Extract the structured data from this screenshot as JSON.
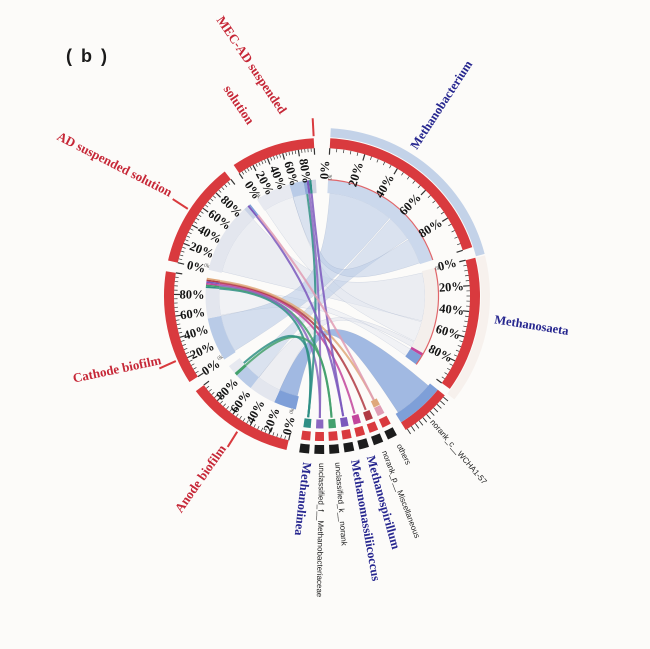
{
  "panel_label": "( b )",
  "colors": {
    "background": "#fcfbf9",
    "axis_red": "#d93a3e",
    "sample_label": "#c62737",
    "taxon_label": "#26268f",
    "tick_text": "#141414",
    "black_band": "#1c1c1c",
    "inner_edge_red": "#e0666a"
  },
  "axis": {
    "tick_labels": [
      "0%",
      "20%",
      "40%",
      "60%",
      "80%"
    ],
    "tick_pcts": [
      0,
      20,
      40,
      60,
      80
    ],
    "minor_step_pct": 4,
    "max_pct": 100,
    "unit_mark": "0k"
  },
  "chart_data": {
    "type": "circos-chord",
    "unit": "%",
    "groups": {
      "samples": [
        "MEC-AD suspended solution",
        "AD suspended solution",
        "Cathode biofilm",
        "Anode biofilm"
      ],
      "genera": [
        "Methanobacterium",
        "Methanosaeta",
        "norank_c__WCHA1-57",
        "others",
        "norank_p__Miscellaneous",
        "Methanospirillum",
        "Methanomassiliicoccus",
        "unclassified_k__norank",
        "unclassified_f__Methanobacteriaceae",
        "Methanolinea"
      ]
    },
    "composition_estimate_pct": {
      "MEC-AD suspended solution": {
        "Methanosaeta": 57,
        "Methanobacterium": 23,
        "minor_genera": 20
      },
      "AD suspended solution": {
        "Methanosaeta": 90,
        "minor_genera": 10
      },
      "Cathode biofilm": {
        "Methanobacterium": 52,
        "Methanosaeta": 36,
        "minor_genera": 12
      },
      "Anode biofilm": {
        "norank_c__WCHA1-57": 28,
        "Methanosaeta": 34,
        "Methanobacterium": 23,
        "minor_genera": 15
      }
    },
    "segments": [
      {
        "id": "mecad",
        "label": "MEC-AD suspended solution",
        "kind": "sample",
        "start": 326,
        "end": 357,
        "axis": true,
        "callout_deg": 357,
        "name_label": {
          "lines": [
            "MEC-AD suspended",
            "solution"
          ],
          "angles": [
            347,
            336.5
          ],
          "radius": 186,
          "rotate": 56,
          "anchor": "end"
        },
        "inner_bands": [
          [
            0,
            0.57,
            "#e7e9f0"
          ],
          [
            0.57,
            0.8,
            "#b9cbe7"
          ],
          [
            0.8,
            0.85,
            "#8ea8d8"
          ],
          [
            0.85,
            0.89,
            "#7b58bd"
          ],
          [
            0.89,
            0.93,
            "#2f8f85"
          ],
          [
            0.93,
            1,
            "#cfd3e2"
          ]
        ]
      },
      {
        "id": "ad",
        "label": "AD suspended solution",
        "kind": "sample",
        "start": 283,
        "end": 322,
        "axis": true,
        "callout_deg": 303,
        "name_label": {
          "lines": [
            "AD suspended solution"
          ],
          "angles": [
            303
          ],
          "radius": 182,
          "rotate": 27,
          "anchor": "end"
        },
        "inner_bands": [
          [
            0,
            0.9,
            "#e3e6ee"
          ],
          [
            0.9,
            0.955,
            "#c9d2e6"
          ],
          [
            0.955,
            0.98,
            "#7b58bd"
          ],
          [
            0.98,
            1,
            "#7e9fd8"
          ]
        ]
      },
      {
        "id": "cathode",
        "label": "Cathode biofilm",
        "kind": "sample",
        "start": 237,
        "end": 279,
        "axis": true,
        "callout_deg": 246,
        "name_label": {
          "lines": [
            "Cathode biofilm"
          ],
          "angles": [
            247
          ],
          "radius": 174,
          "rotate": -12,
          "anchor": "end"
        },
        "inner_bands": [
          [
            0,
            0.52,
            "#b9cbe7"
          ],
          [
            0.52,
            0.88,
            "#e3e6ee"
          ],
          [
            0.88,
            0.9,
            "#2f8f85"
          ],
          [
            0.9,
            0.92,
            "#43a06c"
          ],
          [
            0.92,
            0.94,
            "#c2459c"
          ],
          [
            0.94,
            0.96,
            "#7b58bd"
          ],
          [
            0.96,
            0.98,
            "#b03a43"
          ],
          [
            0.98,
            1,
            "#dfa87a"
          ]
        ]
      },
      {
        "id": "anode",
        "label": "Anode biofilm",
        "kind": "sample",
        "start": 193,
        "end": 233,
        "axis": true,
        "callout_deg": 212,
        "name_label": {
          "lines": [
            "Anode biofilm"
          ],
          "angles": [
            212
          ],
          "radius": 180,
          "rotate": -55,
          "anchor": "end"
        },
        "inner_bands": [
          [
            0,
            0.28,
            "#7e9fd8"
          ],
          [
            0.28,
            0.62,
            "#e3e6ee"
          ],
          [
            0.62,
            0.85,
            "#b9cbe7"
          ],
          [
            0.85,
            0.89,
            "#43a06c"
          ],
          [
            0.89,
            1,
            "#e7e9f0"
          ]
        ]
      },
      {
        "id": "methanobacterium",
        "label": "Methanobacterium",
        "kind": "genus",
        "start": 3,
        "end": 72,
        "axis": true,
        "outer_band": "#c3d2e8",
        "outer_band_end": 75.5,
        "inner_edge": true,
        "name_label": {
          "lines": [
            "Methanobacterium"
          ],
          "angles": [
            33
          ],
          "radius": 174,
          "rotate": -57,
          "anchor": "start"
        },
        "inner_bands": [
          [
            0,
            1,
            "#cbd8ec"
          ]
        ]
      },
      {
        "id": "methanosaeta",
        "label": "Methanosaeta",
        "kind": "genus",
        "start": 76,
        "end": 126,
        "axis": true,
        "outer_band": "#f7f1ed",
        "outer_band_end": 128,
        "inner_edge": true,
        "name_label": {
          "lines": [
            "Methanosaeta"
          ],
          "angles": [
            99
          ],
          "radius": 174,
          "rotate": 9,
          "anchor": "start"
        },
        "inner_bands": [
          [
            0,
            0.87,
            "#f4efec"
          ],
          [
            0.87,
            0.9,
            "#c2459c"
          ],
          [
            0.9,
            1,
            "#7e9fd8"
          ]
        ]
      },
      {
        "id": "norank_c",
        "label": "norank_c__WCHA1-57",
        "kind": "genus",
        "start": 129,
        "end": 148,
        "axis": false,
        "dense_ticks": true,
        "band_color": "#7e9fd8",
        "name_label": {
          "lines": [
            "norank_c__WCHA1-57"
          ],
          "angles": [
            139.5
          ],
          "radius": 166,
          "rotate": 49.5,
          "anchor": "start",
          "small": true
        }
      },
      {
        "id": "others",
        "label": "others",
        "kind": "genus-small",
        "center": 153.5,
        "color": "#e09cb4",
        "color2": "#dfa87a",
        "name_label": {
          "lines": [
            "others"
          ],
          "angles": [
            153.5
          ],
          "radius": 167,
          "rotate": 63.5,
          "anchor": "start",
          "small": true
        }
      },
      {
        "id": "norank_p",
        "label": "norank_p__Miscellaneous",
        "kind": "genus-small",
        "center": 159,
        "color": "#b03a43",
        "name_label": {
          "lines": [
            "norank_p__Miscellaneous"
          ],
          "angles": [
            159
          ],
          "radius": 167,
          "rotate": 69,
          "anchor": "start",
          "small": true
        }
      },
      {
        "id": "methanospirillum",
        "label": "Methanospirillum",
        "kind": "genus-small",
        "center": 164.5,
        "color": "#c2459c",
        "big": true,
        "name_label": {
          "lines": [
            "Methanospirillum"
          ],
          "angles": [
            164.5
          ],
          "radius": 167,
          "rotate": 74.5,
          "anchor": "start"
        }
      },
      {
        "id": "methanomassiliicoccus",
        "label": "Methanomassiliicoccus",
        "kind": "genus-small",
        "center": 170,
        "color": "#7b58bd",
        "big": true,
        "name_label": {
          "lines": [
            "Methanomassiliicoccus"
          ],
          "angles": [
            170
          ],
          "radius": 167,
          "rotate": 80,
          "anchor": "start"
        }
      },
      {
        "id": "unclassified_k",
        "label": "unclassified_k__norank",
        "kind": "genus-small",
        "center": 175.5,
        "color": "#43a06c",
        "name_label": {
          "lines": [
            "unclassified_k__norank"
          ],
          "angles": [
            175.5
          ],
          "radius": 167,
          "rotate": 85.5,
          "anchor": "start",
          "small": true
        }
      },
      {
        "id": "unclassified_f",
        "label": "unclassified_f__Methanobacteriaceae",
        "kind": "genus-small",
        "center": 181,
        "color": "#8a67c0",
        "name_label": {
          "lines": [
            "unclassified_f__Methanobacteriaceae"
          ],
          "angles": [
            181
          ],
          "radius": 167,
          "rotate": 91,
          "anchor": "start",
          "small": true
        }
      },
      {
        "id": "methanolinea",
        "label": "Methanolinea",
        "kind": "genus-small",
        "center": 186.5,
        "color": "#2f8f85",
        "big": true,
        "name_label": {
          "lines": [
            "Methanolinea"
          ],
          "angles": [
            186.5
          ],
          "radius": 167,
          "rotate": 96.5,
          "anchor": "start"
        }
      }
    ],
    "ribbons": [
      {
        "a": [
          "methanosaeta",
          0.02,
          0.56
        ],
        "b": [
          "ad",
          0.02,
          0.9
        ],
        "color": "#dde2ec",
        "opacity": 0.55
      },
      {
        "a": [
          "methanosaeta",
          0.57,
          0.8
        ],
        "b": [
          "mecad",
          0.02,
          0.57
        ],
        "color": "#e4e7f0",
        "opacity": 0.5
      },
      {
        "a": [
          "methanosaeta",
          0.81,
          0.87
        ],
        "b": [
          "anode",
          0.28,
          0.62
        ],
        "color": "#dde2ec",
        "opacity": 0.5
      },
      {
        "a": [
          "methanosaeta",
          0.9,
          0.99
        ],
        "b": [
          "cathode",
          0.53,
          0.87
        ],
        "color": "#e4e7f0",
        "opacity": 0.45
      },
      {
        "a": [
          "methanobacterium",
          0.02,
          0.55
        ],
        "b": [
          "cathode",
          0.02,
          0.52
        ],
        "color": "#b7c9e6",
        "opacity": 0.58
      },
      {
        "a": [
          "methanobacterium",
          0.56,
          0.77
        ],
        "b": [
          "anode",
          0.62,
          0.85
        ],
        "color": "#b7c9e6",
        "opacity": 0.5
      },
      {
        "a": [
          "methanobacterium",
          0.78,
          0.99
        ],
        "b": [
          "mecad",
          0.57,
          0.8
        ],
        "color": "#b7c9e6",
        "opacity": 0.5
      },
      {
        "a": [
          "norank_c",
          0.06,
          0.94
        ],
        "b": [
          "anode",
          0.02,
          0.28
        ],
        "color": "#7e9fd8",
        "opacity": 0.72,
        "ra": 139
      }
    ],
    "strands": [
      {
        "from": [
          "cathode",
          0.885
        ],
        "to": "methanolinea",
        "color": "#2f8f85"
      },
      {
        "from": [
          "cathode",
          0.905
        ],
        "to": "unclassified_k",
        "color": "#43a06c"
      },
      {
        "from": [
          "cathode",
          0.925
        ],
        "to": "unclassified_f",
        "color": "#8a67c0"
      },
      {
        "from": [
          "cathode",
          0.945
        ],
        "to": "methanospirillum",
        "color": "#c2459c"
      },
      {
        "from": [
          "cathode",
          0.965
        ],
        "to": "norank_p",
        "color": "#b03a43"
      },
      {
        "from": [
          "cathode",
          0.985
        ],
        "to": "others",
        "color": "#dfa87a"
      },
      {
        "from": [
          "mecad",
          0.83
        ],
        "to": "methanolinea",
        "color": "#2f8f85"
      },
      {
        "from": [
          "mecad",
          0.87
        ],
        "to": "unclassified_f",
        "color": "#8a67c0"
      },
      {
        "from": [
          "mecad",
          0.91
        ],
        "to": "methanomassiliicoccus",
        "color": "#7b58bd"
      },
      {
        "from": [
          "ad",
          0.965
        ],
        "to": "methanomassiliicoccus",
        "color": "#7b58bd"
      },
      {
        "from": [
          "ad",
          0.99
        ],
        "to": "others",
        "color": "#e09cb4"
      },
      {
        "from": [
          "anode",
          0.87
        ],
        "to": "unclassified_k",
        "color": "#43a06c"
      },
      {
        "from": [
          "anode",
          0.91
        ],
        "to": "methanolinea",
        "color": "#2f8f85"
      }
    ]
  }
}
